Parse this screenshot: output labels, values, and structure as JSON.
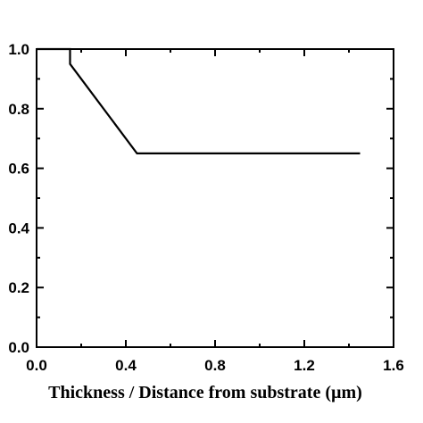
{
  "chart_data": {
    "type": "line",
    "title": "",
    "xlabel": "Thickness / Distance from substrate (µm)",
    "ylabel": "",
    "xlim": [
      0.0,
      1.6
    ],
    "ylim": [
      0.0,
      1.0
    ],
    "grid": false,
    "x_ticks": [
      {
        "value": 0.0,
        "label": "0.0"
      },
      {
        "value": 0.4,
        "label": "0.4"
      },
      {
        "value": 0.8,
        "label": "0.8"
      },
      {
        "value": 1.2,
        "label": "1.2"
      },
      {
        "value": 1.6,
        "label": "1.6"
      }
    ],
    "y_ticks": [
      {
        "value": 0.0,
        "label": "0.0"
      },
      {
        "value": 0.2,
        "label": "0.2"
      },
      {
        "value": 0.4,
        "label": "0.4"
      },
      {
        "value": 0.6,
        "label": "0.6"
      },
      {
        "value": 0.8,
        "label": "0.8"
      },
      {
        "value": 1.0,
        "label": "1.0"
      }
    ],
    "series": [
      {
        "x": [
          0.0,
          0.15,
          0.15,
          0.45,
          1.45
        ],
        "y": [
          1.0,
          1.0,
          0.95,
          0.65,
          0.65
        ]
      }
    ],
    "colors": {
      "line": "#000000",
      "axes": "#000000",
      "background": "#ffffff"
    }
  }
}
